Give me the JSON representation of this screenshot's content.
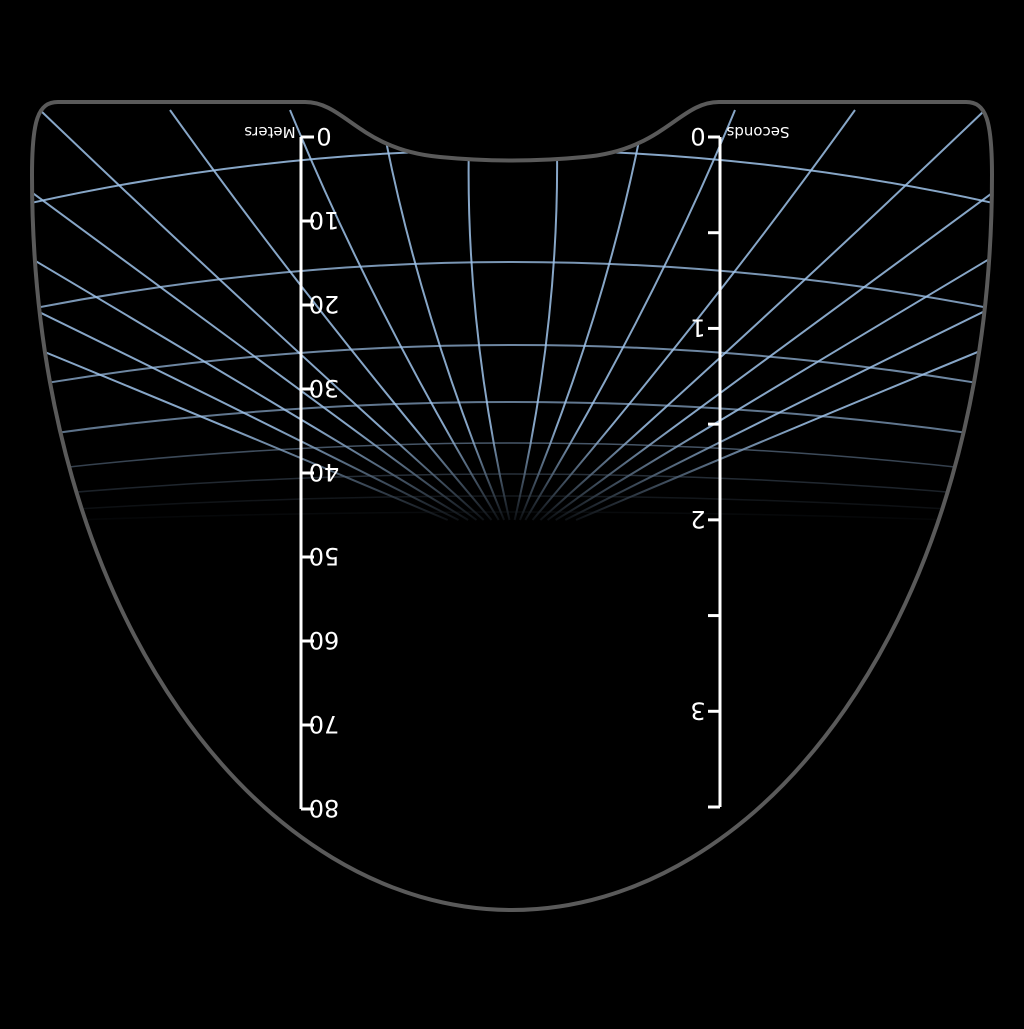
{
  "colors": {
    "background": "#000000",
    "frame_stroke": "#5a5a5a",
    "grid_line": "#9fc3ea",
    "grid_glow": "#1b3a5c",
    "scale": "#ffffff"
  },
  "orientation": "mirrored-horizontally",
  "meters_scale": {
    "unit_label": "Meters",
    "ticks": [
      "0",
      "10",
      "20",
      "30",
      "40",
      "50",
      "60",
      "70",
      "80"
    ]
  },
  "seconds_scale": {
    "unit_label": "Seconds",
    "major_ticks": [
      "0",
      "1",
      "2",
      "3"
    ]
  }
}
